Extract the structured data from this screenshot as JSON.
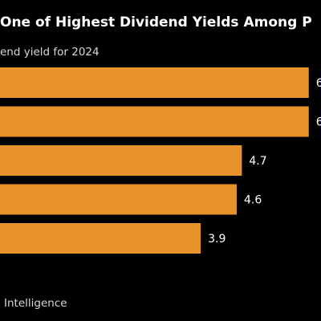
{
  "chart_data": {
    "type": "bar",
    "orientation": "horizontal",
    "title": "One of Highest Dividend Yields Among P",
    "subtitle": "end yield for 2024",
    "values": [
      6.0,
      6.0,
      4.7,
      4.6,
      3.9
    ],
    "labels": [
      "6",
      "6",
      "4.7",
      "4.6",
      "3.9"
    ],
    "xlim": [
      0,
      6.3
    ],
    "grid": false,
    "legend": "none",
    "bar_color": "#e8922b",
    "label_color": "#ffffff"
  },
  "footer": {
    "source": "Intelligence"
  }
}
